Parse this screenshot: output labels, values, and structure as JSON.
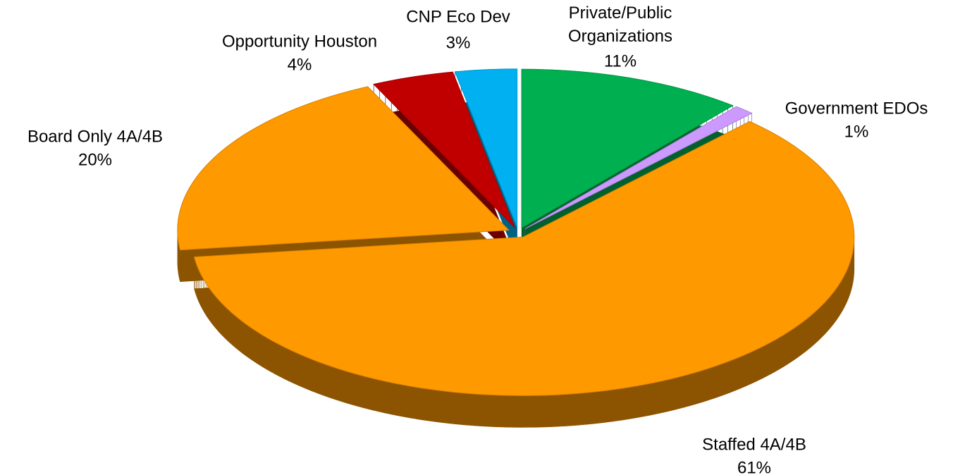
{
  "chart_data": {
    "type": "pie3d",
    "categories": [
      "Private/Public\nOrganizations",
      "Government EDOs",
      "Staffed 4A/4B",
      "Board Only 4A/4B",
      "Opportunity Houston",
      "CNP Eco Dev"
    ],
    "values": [
      11,
      1,
      61,
      20,
      4,
      3
    ],
    "value_labels": [
      "11%",
      "1%",
      "61%",
      "20%",
      "4%",
      "3%"
    ],
    "colors": [
      "#00b050",
      "#cc99ff",
      "#ff9900",
      "#ff9900",
      "#c00000",
      "#00b0f0"
    ]
  }
}
